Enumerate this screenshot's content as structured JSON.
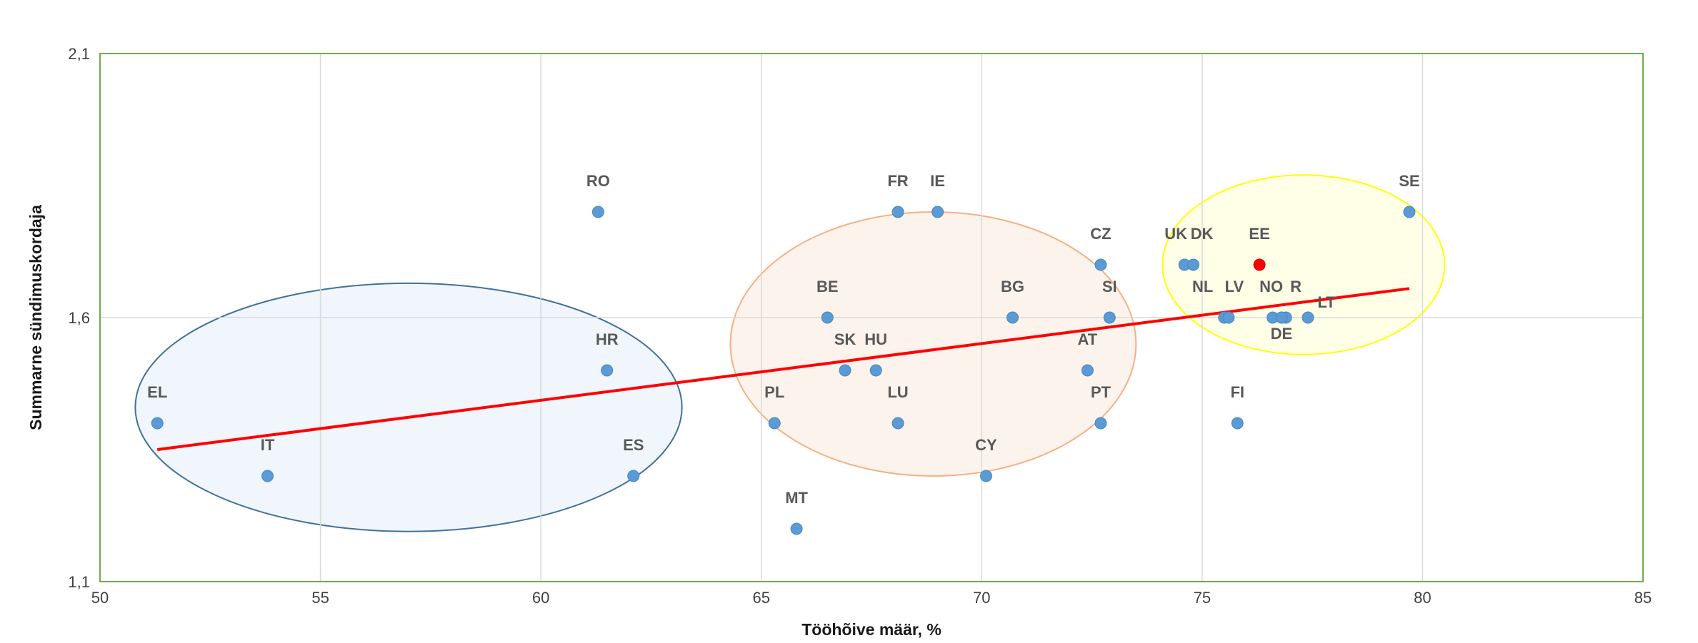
{
  "chart_data": {
    "type": "scatter",
    "xlabel": "Tööhõive määr, %",
    "ylabel": "Summarne sündimuskordaja",
    "xlim": [
      50,
      85
    ],
    "ylim": [
      1.1,
      2.1
    ],
    "x_ticks": [
      "50",
      "55",
      "60",
      "65",
      "70",
      "75",
      "80",
      "85"
    ],
    "y_ticks": [
      "1,1",
      "1,6",
      "2,1"
    ],
    "grid": true,
    "colors": {
      "point": "#5b9bd5",
      "highlight_point": "#ff0000",
      "highlight_label": "#ff0000",
      "label": "#595959",
      "trendline": "#ff0000",
      "plot_border": "#70ad47",
      "grid": "#d9d9d9"
    },
    "points": [
      {
        "label": "RO",
        "x": 61.3,
        "y": 1.8
      },
      {
        "label": "FR",
        "x": 68.1,
        "y": 1.8
      },
      {
        "label": "IE",
        "x": 69.0,
        "y": 1.8
      },
      {
        "label": "SE",
        "x": 79.7,
        "y": 1.8
      },
      {
        "label": "CZ",
        "x": 72.7,
        "y": 1.7
      },
      {
        "label": "EE",
        "x": 76.3,
        "y": 1.7,
        "highlight": true
      },
      {
        "label": "UK",
        "x": 74.6,
        "y": 1.7
      },
      {
        "label": "DK",
        "x": 74.8,
        "y": 1.7
      },
      {
        "label": "BE",
        "x": 66.5,
        "y": 1.6
      },
      {
        "label": "BG",
        "x": 70.7,
        "y": 1.6
      },
      {
        "label": "SI",
        "x": 72.9,
        "y": 1.6
      },
      {
        "label": "NL",
        "x": 75.5,
        "y": 1.6
      },
      {
        "label": "LV",
        "x": 75.6,
        "y": 1.6
      },
      {
        "label": "NO",
        "x": 76.6,
        "y": 1.6
      },
      {
        "label": "R",
        "x": 76.9,
        "y": 1.6
      },
      {
        "label": "DE",
        "x": 76.8,
        "y": 1.6
      },
      {
        "label": "LT",
        "x": 77.4,
        "y": 1.6
      },
      {
        "label": "HR",
        "x": 61.5,
        "y": 1.5
      },
      {
        "label": "SK",
        "x": 66.9,
        "y": 1.5
      },
      {
        "label": "HU",
        "x": 67.6,
        "y": 1.5
      },
      {
        "label": "AT",
        "x": 72.4,
        "y": 1.5
      },
      {
        "label": "EL",
        "x": 51.3,
        "y": 1.4
      },
      {
        "label": "PL",
        "x": 65.3,
        "y": 1.4
      },
      {
        "label": "LU",
        "x": 68.1,
        "y": 1.4
      },
      {
        "label": "PT",
        "x": 72.7,
        "y": 1.4
      },
      {
        "label": "FI",
        "x": 75.8,
        "y": 1.4
      },
      {
        "label": "IT",
        "x": 53.8,
        "y": 1.3
      },
      {
        "label": "ES",
        "x": 62.1,
        "y": 1.3
      },
      {
        "label": "CY",
        "x": 70.1,
        "y": 1.3
      },
      {
        "label": "MT",
        "x": 65.8,
        "y": 1.2
      }
    ],
    "trendline": {
      "x": [
        51.3,
        79.7
      ],
      "y": [
        1.35,
        1.655
      ]
    },
    "clusters": [
      {
        "cx": 57.0,
        "cy": 1.43,
        "rx": 6.2,
        "ry": 0.235,
        "color": "#41719c",
        "fill": "#deebf7"
      },
      {
        "cx": 68.9,
        "cy": 1.55,
        "rx": 4.6,
        "ry": 0.25,
        "color": "#f4b183",
        "fill": "#fbe5d6"
      },
      {
        "cx": 77.3,
        "cy": 1.7,
        "rx": 3.2,
        "ry": 0.17,
        "color": "#ffff00",
        "fill": "#ffffcc"
      }
    ]
  }
}
